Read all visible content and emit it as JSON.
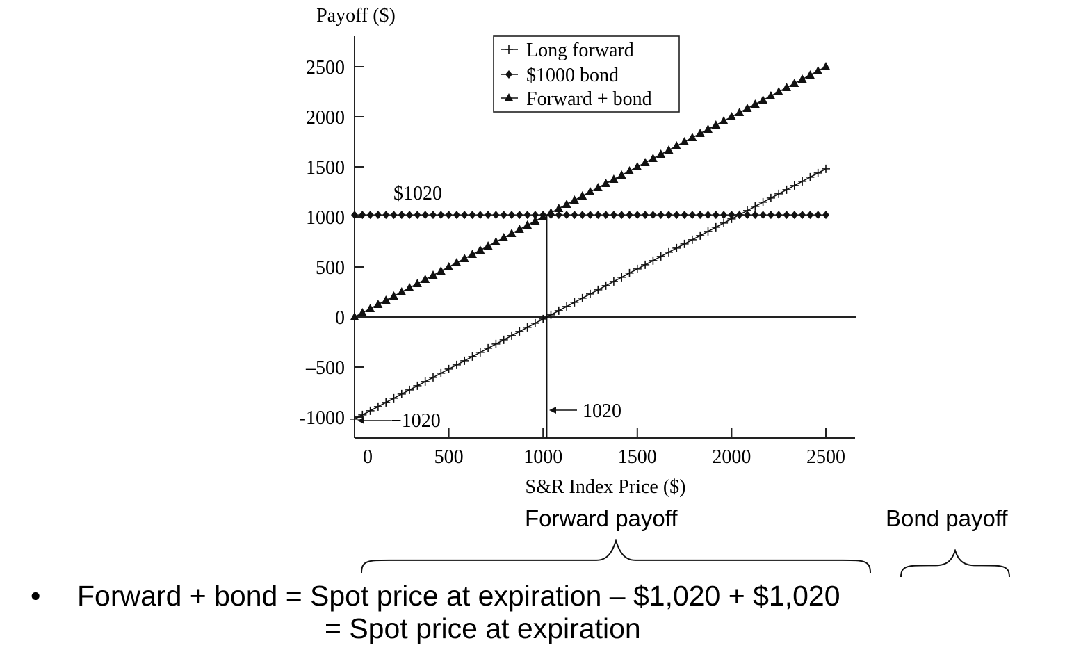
{
  "chart_data": {
    "type": "line",
    "ylabel": "Payoff ($)",
    "xlabel": "S&R Index Price ($)",
    "xlim": [
      0,
      2500
    ],
    "ylim": [
      -1000,
      2500
    ],
    "xticks": [
      "0",
      "500",
      "1000",
      "1500",
      "2000",
      "2500"
    ],
    "yticks": [
      "2500",
      "2000",
      "1500",
      "1000",
      "500",
      "0",
      "–500",
      "-1000"
    ],
    "grid": false,
    "legend_position": "top-center",
    "series": [
      {
        "name": "Long forward",
        "marker": "plus",
        "x": [
          0,
          2500
        ],
        "y": [
          -1020,
          1480
        ]
      },
      {
        "name": "$1000 bond",
        "marker": "diamond",
        "x": [
          0,
          2500
        ],
        "y": [
          1020,
          1020
        ]
      },
      {
        "name": "Forward + bond",
        "marker": "triangle",
        "x": [
          0,
          2500
        ],
        "y": [
          0,
          2500
        ]
      }
    ],
    "annotations": {
      "bond_value": "$1020",
      "forward_price": "1020",
      "forward_intercept": "−1020"
    }
  },
  "annotation": {
    "forward_payoff": "Forward payoff",
    "bond_payoff": "Bond payoff"
  },
  "formula": {
    "bullet": "•",
    "line1": "Forward + bond = Spot price at expiration – $1,020 + $1,020",
    "line2": "= Spot price at expiration"
  }
}
